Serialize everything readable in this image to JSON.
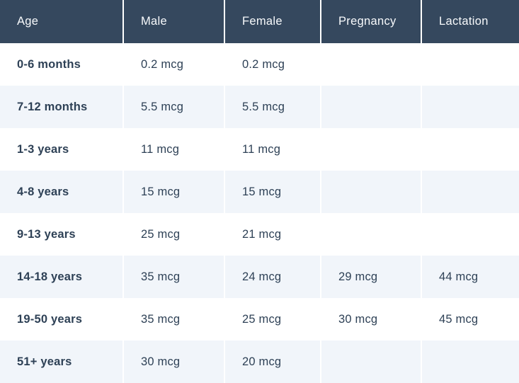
{
  "colors": {
    "header_bg": "#35485e",
    "header_text": "#f8fafc",
    "row_stripe": "#f1f5fa",
    "row_white": "#ffffff",
    "body_text": "#2e4156",
    "separator": "#ffffff"
  },
  "chart_data": {
    "type": "table",
    "columns": [
      "Age",
      "Male",
      "Female",
      "Pregnancy",
      "Lactation"
    ],
    "unit": "mcg",
    "rows": [
      [
        "0-6 months",
        "0.2 mcg",
        "0.2 mcg",
        "",
        ""
      ],
      [
        "7-12 months",
        "5.5 mcg",
        "5.5 mcg",
        "",
        ""
      ],
      [
        "1-3 years",
        "11 mcg",
        "11 mcg",
        "",
        ""
      ],
      [
        "4-8 years",
        "15 mcg",
        "15 mcg",
        "",
        ""
      ],
      [
        "9-13 years",
        "25 mcg",
        "21 mcg",
        "",
        ""
      ],
      [
        "14-18 years",
        "35 mcg",
        "24 mcg",
        "29 mcg",
        "44 mcg"
      ],
      [
        "19-50 years",
        "35 mcg",
        "25 mcg",
        "30 mcg",
        "45 mcg"
      ],
      [
        "51+ years",
        "30 mcg",
        "20 mcg",
        "",
        ""
      ]
    ]
  }
}
